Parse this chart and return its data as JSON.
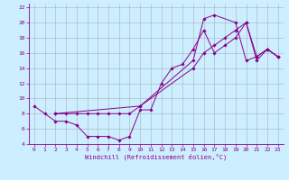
{
  "xlabel": "Windchill (Refroidissement éolien,°C)",
  "background_color": "#cceeff",
  "grid_color": "#999999",
  "line_color": "#880088",
  "xlim": [
    -0.5,
    23.5
  ],
  "ylim": [
    4,
    22.5
  ],
  "xticks": [
    0,
    1,
    2,
    3,
    4,
    5,
    6,
    7,
    8,
    9,
    10,
    11,
    12,
    13,
    14,
    15,
    16,
    17,
    18,
    19,
    20,
    21,
    22,
    23
  ],
  "yticks": [
    4,
    6,
    8,
    10,
    12,
    14,
    16,
    18,
    20,
    22
  ],
  "line1_x": [
    0,
    1,
    2,
    3,
    4,
    5,
    6,
    7,
    8,
    9,
    10,
    11,
    12,
    13,
    14,
    15,
    16,
    17,
    18,
    19,
    20,
    21,
    22,
    23
  ],
  "line1_y": [
    9,
    8,
    7,
    7,
    6.5,
    5,
    5,
    5,
    4.5,
    5,
    8.5,
    8.5,
    12,
    14,
    14.5,
    16.5,
    19,
    16,
    17,
    18,
    20,
    15,
    16.5,
    15.5
  ],
  "line2_x": [
    2,
    3,
    4,
    5,
    6,
    7,
    8,
    9,
    10,
    15,
    16,
    17,
    19,
    20,
    21,
    22,
    23
  ],
  "line2_y": [
    8,
    8,
    8,
    8,
    8,
    8,
    8,
    8,
    9,
    15,
    20.5,
    21,
    20,
    15,
    15.5,
    16.5,
    15.5
  ],
  "line3_x": [
    2,
    10,
    15,
    16,
    17,
    18,
    19,
    20,
    21,
    22,
    23
  ],
  "line3_y": [
    8,
    9,
    14,
    16,
    17,
    18,
    19,
    20,
    15.5,
    16.5,
    15.5
  ]
}
